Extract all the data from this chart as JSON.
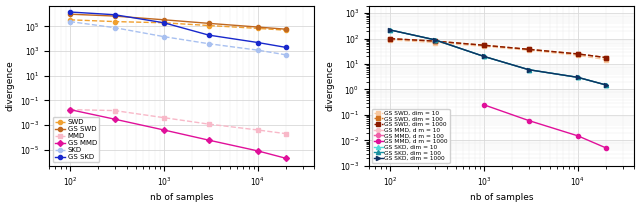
{
  "left": {
    "xlabel": "nb of samples",
    "ylabel": "divergence",
    "x": [
      100,
      300,
      1000,
      3000,
      10000,
      20000
    ],
    "series": [
      {
        "label": "SWD",
        "color": "#f0a030",
        "ls": "--",
        "marker": "o",
        "y": [
          350000.0,
          250000.0,
          200000.0,
          120000.0,
          70000.0,
          50000.0
        ]
      },
      {
        "label": "GS SWD",
        "color": "#c06820",
        "ls": "-",
        "marker": "o",
        "y": [
          1000000.0,
          700000.0,
          350000.0,
          180000.0,
          90000.0,
          60000.0
        ]
      },
      {
        "label": "MMD",
        "color": "#f8b8c8",
        "ls": "--",
        "marker": "s",
        "y": [
          0.018,
          0.015,
          0.004,
          0.0012,
          0.0004,
          0.0002
        ]
      },
      {
        "label": "GS MMD",
        "color": "#e0109a",
        "ls": "-",
        "marker": "D",
        "y": [
          0.018,
          0.003,
          0.0004,
          6e-05,
          8e-06,
          2e-06
        ]
      },
      {
        "label": "SKD",
        "color": "#a8c0f0",
        "ls": "--",
        "marker": "o",
        "y": [
          250000.0,
          80000.0,
          15000.0,
          4000.0,
          1200.0,
          500.0
        ]
      },
      {
        "label": "GS SKD",
        "color": "#1828cc",
        "ls": "-",
        "marker": "o",
        "y": [
          1500000.0,
          900000.0,
          200000.0,
          20000.0,
          5000.0,
          2000.0
        ]
      }
    ]
  },
  "right": {
    "xlabel": "nb of samples",
    "ylabel": "divergence",
    "x": [
      100,
      300,
      1000,
      3000,
      10000,
      20000
    ],
    "series": [
      {
        "label": "GS SWD, dim = 10",
        "color": "#f8c8a0",
        "ls": "--",
        "marker": "s",
        "y": [
          90.0,
          70.0,
          50.0,
          35.0,
          22.0,
          15.0
        ]
      },
      {
        "label": "GS SWD, dim = 100",
        "color": "#d07020",
        "ls": "--",
        "marker": "s",
        "y": [
          100.0,
          80.0,
          55.0,
          38.0,
          25.0,
          18.0
        ]
      },
      {
        "label": "GS SWD, dim = 1000",
        "color": "#8b1a00",
        "ls": "--",
        "marker": "s",
        "y": [
          100.0,
          80.0,
          55.0,
          38.0,
          25.0,
          18.0
        ]
      },
      {
        "label": "GS MMD, d m = 10",
        "color": "#f8c0c8",
        "ls": "-",
        "marker": "o",
        "y": [
          null,
          null,
          null,
          null,
          null,
          null
        ]
      },
      {
        "label": "GS MMD, d m = 100",
        "color": "#f060a8",
        "ls": "-",
        "marker": "o",
        "y": [
          null,
          null,
          null,
          null,
          null,
          null
        ]
      },
      {
        "label": "GS MMD, d m = 1000",
        "color": "#e0109a",
        "ls": "-",
        "marker": "o",
        "y": [
          null,
          null,
          0.25,
          0.06,
          0.015,
          0.005
        ]
      },
      {
        "label": "GS SKD, dim = 10",
        "color": "#50dcd8",
        "ls": "-",
        "marker": "^",
        "y": [
          220.0,
          90.0,
          20.0,
          6.0,
          3.0,
          1.5
        ]
      },
      {
        "label": "GS SKD, dim = 100",
        "color": "#1890a0",
        "ls": "-",
        "marker": "^",
        "y": [
          220.0,
          90.0,
          20.0,
          6.0,
          3.0,
          1.5
        ]
      },
      {
        "label": "GS SKD, dim = 1000",
        "color": "#103060",
        "ls": "-",
        "marker": ">",
        "y": [
          220.0,
          90.0,
          20.0,
          6.0,
          3.0,
          1.5
        ]
      }
    ]
  }
}
